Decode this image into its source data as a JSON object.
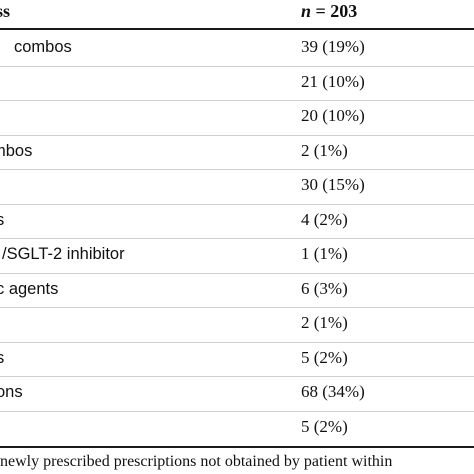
{
  "table": {
    "header": {
      "class_label": "ss",
      "n_prefix": "n",
      "n_suffix": " = 203"
    },
    "rows": [
      {
        "label": "combos",
        "value": "39 (19%)"
      },
      {
        "label": "",
        "value": "21 (10%)"
      },
      {
        "label": "",
        "value": "20 (10%)"
      },
      {
        "label": "mbos",
        "value": "2 (1%)"
      },
      {
        "label": "",
        "value": "30 (15%)"
      },
      {
        "label": "s",
        "value": "4 (2%)"
      },
      {
        "label": "/SGLT-2 inhibitor",
        "value": "1 (1%)"
      },
      {
        "label": "c agents",
        "value": "6 (3%)"
      },
      {
        "label": "",
        "value": "2 (1%)"
      },
      {
        "label": "s",
        "value": "5 (2%)"
      },
      {
        "label": "ons",
        "value": "68 (34%)"
      },
      {
        "label": "",
        "value": "5 (2%)"
      }
    ]
  },
  "footnote": "newly prescribed prescriptions not obtained by patient within"
}
